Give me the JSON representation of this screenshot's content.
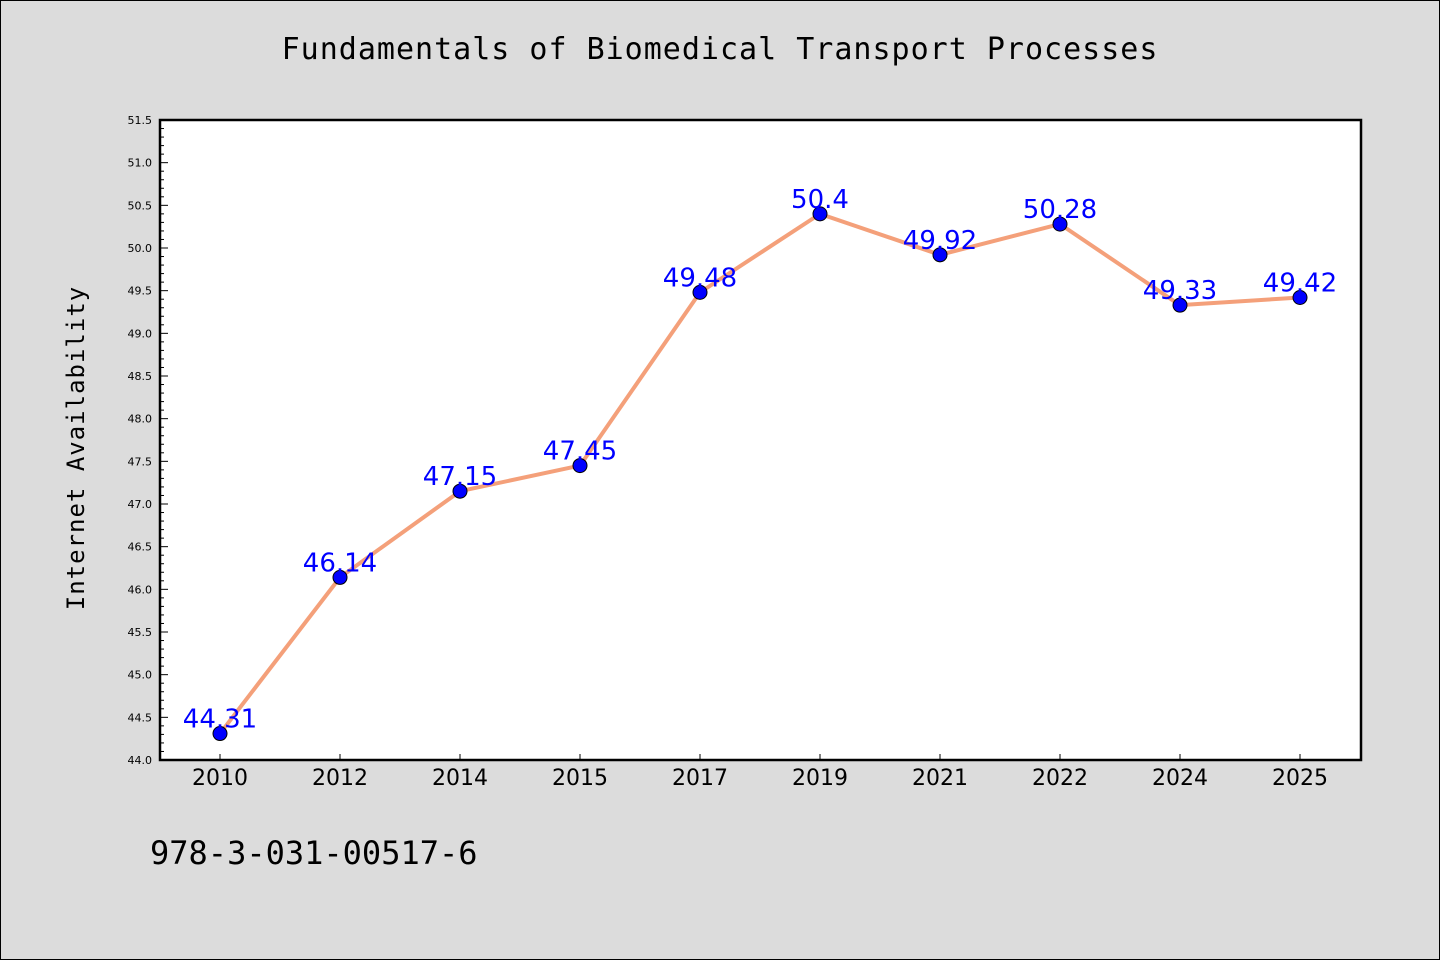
{
  "chart_data": {
    "type": "line",
    "title": "Fundamentals of Biomedical Transport Processes",
    "xlabel": "",
    "ylabel": "Internet Availability",
    "categories": [
      "2010",
      "2012",
      "2014",
      "2015",
      "2017",
      "2019",
      "2021",
      "2022",
      "2024",
      "2025"
    ],
    "values": [
      44.31,
      46.14,
      47.15,
      47.45,
      49.48,
      50.4,
      49.92,
      50.28,
      49.33,
      49.42
    ],
    "data_labels": [
      "44.31",
      "46.14",
      "47.15",
      "47.45",
      "49.48",
      "50.4",
      "49.92",
      "50.28",
      "49.33",
      "49.42"
    ],
    "ylim": [
      44.0,
      51.5
    ],
    "yticks": [
      "44.0",
      "44.5",
      "45.0",
      "45.5",
      "46.0",
      "46.5",
      "47.0",
      "47.5",
      "48.0",
      "48.5",
      "49.0",
      "49.5",
      "50.0",
      "50.5",
      "51.0",
      "51.5"
    ],
    "grid": false,
    "legend": "none",
    "colors": {
      "line": "#f4a07a",
      "marker": "#0000ff",
      "label": "#0000ff",
      "background": "#dcdcdc",
      "plot": "#ffffff"
    }
  },
  "footer": {
    "isbn": "978-3-031-00517-6"
  }
}
